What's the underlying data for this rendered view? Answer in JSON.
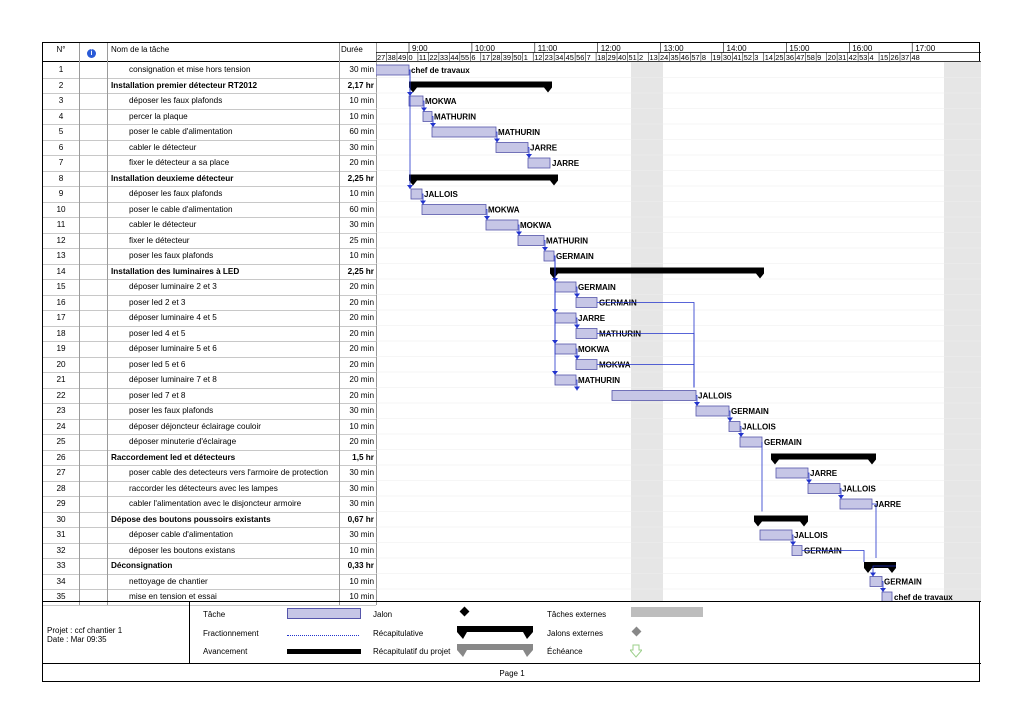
{
  "columns": {
    "num": "N°",
    "info_icon": "info-icon",
    "name": "Nom de la tâche",
    "duration": "Durée"
  },
  "timescale": {
    "hours": [
      "9:00",
      "10:00",
      "11:00",
      "12:00",
      "13:00",
      "14:00",
      "15:00",
      "16:00",
      "17:00"
    ],
    "minutes": [
      "27",
      "38",
      "49",
      "0",
      "11",
      "22",
      "33",
      "44",
      "55",
      "6",
      "17",
      "28",
      "39",
      "50",
      "1",
      "12",
      "23",
      "34",
      "45",
      "56",
      "7",
      "18",
      "29",
      "40",
      "51",
      "2",
      "13",
      "24",
      "35",
      "46",
      "57",
      "8",
      "19",
      "30",
      "41",
      "52",
      "3",
      "14",
      "25",
      "36",
      "47",
      "58",
      "9",
      "20",
      "31",
      "42",
      "53",
      "4",
      "15",
      "26",
      "37",
      "48"
    ]
  },
  "tasks": [
    {
      "id": "1",
      "name": "consignation et mise hors tension",
      "duration": "30 min",
      "summary": false,
      "resource": "chef de travaux"
    },
    {
      "id": "2",
      "name": "Installation premier détecteur RT2012",
      "duration": "2,17 hr",
      "summary": true,
      "resource": ""
    },
    {
      "id": "3",
      "name": "déposer les faux plafonds",
      "duration": "10 min",
      "summary": false,
      "resource": "MOKWA"
    },
    {
      "id": "4",
      "name": "percer la plaque",
      "duration": "10 min",
      "summary": false,
      "resource": "MATHURIN"
    },
    {
      "id": "5",
      "name": "poser le cable d'alimentation",
      "duration": "60 min",
      "summary": false,
      "resource": "MATHURIN"
    },
    {
      "id": "6",
      "name": "cabler le détecteur",
      "duration": "30 min",
      "summary": false,
      "resource": "JARRE"
    },
    {
      "id": "7",
      "name": "fixer le détecteur a sa place",
      "duration": "20 min",
      "summary": false,
      "resource": "JARRE"
    },
    {
      "id": "8",
      "name": "Installation deuxieme détecteur",
      "duration": "2,25 hr",
      "summary": true,
      "resource": ""
    },
    {
      "id": "9",
      "name": "déposer les faux plafonds",
      "duration": "10 min",
      "summary": false,
      "resource": "JALLOIS"
    },
    {
      "id": "10",
      "name": "poser le cable d'alimentation",
      "duration": "60 min",
      "summary": false,
      "resource": "MOKWA"
    },
    {
      "id": "11",
      "name": "cabler le détecteur",
      "duration": "30 min",
      "summary": false,
      "resource": "MOKWA"
    },
    {
      "id": "12",
      "name": "fixer le détecteur",
      "duration": "25 min",
      "summary": false,
      "resource": "MATHURIN"
    },
    {
      "id": "13",
      "name": "poser les faux plafonds",
      "duration": "10 min",
      "summary": false,
      "resource": "GERMAIN"
    },
    {
      "id": "14",
      "name": "Installation des luminaires à LED",
      "duration": "2,25 hr",
      "summary": true,
      "resource": ""
    },
    {
      "id": "15",
      "name": "déposer luminaire 2 et 3",
      "duration": "20 min",
      "summary": false,
      "resource": "GERMAIN"
    },
    {
      "id": "16",
      "name": "poser led 2 et 3",
      "duration": "20 min",
      "summary": false,
      "resource": "GERMAIN"
    },
    {
      "id": "17",
      "name": "déposer luminaire 4 et 5",
      "duration": "20 min",
      "summary": false,
      "resource": "JARRE"
    },
    {
      "id": "18",
      "name": "poser led 4 et 5",
      "duration": "20 min",
      "summary": false,
      "resource": "MATHURIN"
    },
    {
      "id": "19",
      "name": "déposer luminaire 5 et 6",
      "duration": "20 min",
      "summary": false,
      "resource": "MOKWA"
    },
    {
      "id": "20",
      "name": "poser led 5 et 6",
      "duration": "20 min",
      "summary": false,
      "resource": "MOKWA"
    },
    {
      "id": "21",
      "name": "déposer luminaire 7 et 8",
      "duration": "20 min",
      "summary": false,
      "resource": "MATHURIN"
    },
    {
      "id": "22",
      "name": "poser led 7 et 8",
      "duration": "20 min",
      "summary": false,
      "resource": "JALLOIS"
    },
    {
      "id": "23",
      "name": "poser les faux plafonds",
      "duration": "30 min",
      "summary": false,
      "resource": "GERMAIN"
    },
    {
      "id": "24",
      "name": "déposer déjoncteur éclairage couloir",
      "duration": "10 min",
      "summary": false,
      "resource": "JALLOIS"
    },
    {
      "id": "25",
      "name": "déposer minuterie d'éclairage",
      "duration": "20 min",
      "summary": false,
      "resource": "GERMAIN"
    },
    {
      "id": "26",
      "name": "Raccordement led et détecteurs",
      "duration": "1,5 hr",
      "summary": true,
      "resource": ""
    },
    {
      "id": "27",
      "name": "poser cable des detecteurs vers l'armoire de protection",
      "duration": "30 min",
      "summary": false,
      "resource": "JARRE"
    },
    {
      "id": "28",
      "name": "raccorder les détecteurs avec les lampes",
      "duration": "30 min",
      "summary": false,
      "resource": "JALLOIS"
    },
    {
      "id": "29",
      "name": "cabler l'alimentation avec le disjoncteur  armoire",
      "duration": "30 min",
      "summary": false,
      "resource": "JARRE"
    },
    {
      "id": "30",
      "name": "Dépose des boutons poussoirs existants",
      "duration": "0,67 hr",
      "summary": true,
      "resource": ""
    },
    {
      "id": "31",
      "name": "déposer cable d'alimentation",
      "duration": "30 min",
      "summary": false,
      "resource": "JALLOIS"
    },
    {
      "id": "32",
      "name": "déposer les boutons existans",
      "duration": "10 min",
      "summary": false,
      "resource": "GERMAIN"
    },
    {
      "id": "33",
      "name": "Déconsignation",
      "duration": "0,33 hr",
      "summary": true,
      "resource": ""
    },
    {
      "id": "34",
      "name": "nettoyage de chantier",
      "duration": "10 min",
      "summary": false,
      "resource": "GERMAIN"
    },
    {
      "id": "35",
      "name": "mise en tension et essai",
      "duration": "10 min",
      "summary": false,
      "resource": "chef de travaux"
    }
  ],
  "legend": {
    "project": "Projet : ccf chantier 1",
    "date": "Date : Mar 09:35",
    "items": [
      "Tâche",
      "Fractionnement",
      "Avancement",
      "Jalon",
      "Récapitulative",
      "Récapitulatif du projet",
      "Tâches externes",
      "Jalons externes",
      "Échéance"
    ]
  },
  "footer": {
    "page": "Page 1"
  },
  "colors": {
    "task_fill": "#c6c6e6",
    "task_border": "#5555aa",
    "summary": "#000000",
    "link": "#2233cc",
    "shade": "#e6e6e6"
  }
}
